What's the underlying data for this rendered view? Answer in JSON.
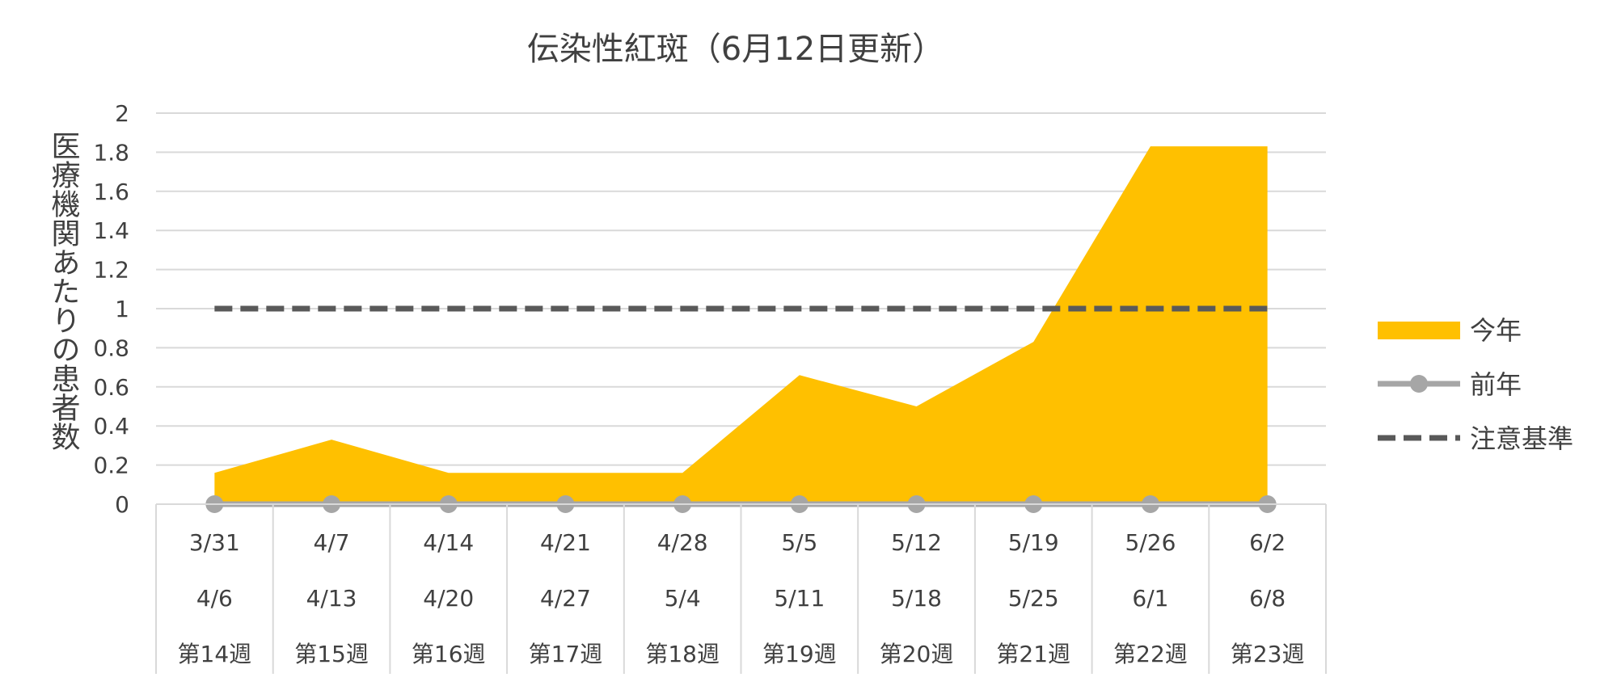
{
  "chart_data": {
    "type": "area",
    "title": "伝染性紅斑（6月12日更新）",
    "ylabel": "医療機関あたりの患者数",
    "ylim": [
      0,
      2
    ],
    "yticks": [
      0,
      0.2,
      0.4,
      0.6,
      0.8,
      1,
      1.2,
      1.4,
      1.6,
      1.8,
      2
    ],
    "grid": true,
    "legend_position": "right",
    "categories": [
      {
        "start": "3/31",
        "end": "4/6",
        "week": "第14週"
      },
      {
        "start": "4/7",
        "end": "4/13",
        "week": "第15週"
      },
      {
        "start": "4/14",
        "end": "4/20",
        "week": "第16週"
      },
      {
        "start": "4/21",
        "end": "4/27",
        "week": "第17週"
      },
      {
        "start": "4/28",
        "end": "5/4",
        "week": "第18週"
      },
      {
        "start": "5/5",
        "end": "5/11",
        "week": "第19週"
      },
      {
        "start": "5/12",
        "end": "5/18",
        "week": "第20週"
      },
      {
        "start": "5/19",
        "end": "5/25",
        "week": "第21週"
      },
      {
        "start": "5/26",
        "end": "6/1",
        "week": "第22週"
      },
      {
        "start": "6/2",
        "end": "6/8",
        "week": "第23週"
      }
    ],
    "series": [
      {
        "name": "今年",
        "kind": "area",
        "color": "#FFC000",
        "values": [
          0.16,
          0.33,
          0.16,
          0.16,
          0.16,
          0.66,
          0.5,
          0.83,
          1.83,
          1.83
        ]
      },
      {
        "name": "前年",
        "kind": "line-marker",
        "color": "#A6A6A6",
        "values": [
          0,
          0,
          0,
          0,
          0,
          0,
          0,
          0,
          0,
          0
        ]
      },
      {
        "name": "注意基準",
        "kind": "dashed-line",
        "color": "#595959",
        "values": [
          1,
          1,
          1,
          1,
          1,
          1,
          1,
          1,
          1,
          1
        ]
      }
    ]
  }
}
